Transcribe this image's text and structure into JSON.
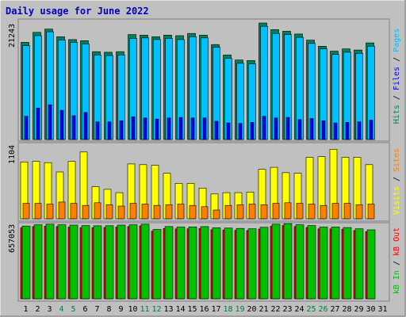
{
  "title": "Daily usage for June 2022",
  "colors": {
    "background": "#c0c0c0",
    "title_text": "#0000c0",
    "hits": "#00805c",
    "files": "#0000ff",
    "pages": "#00c0ff",
    "visits": "#ffff00",
    "sites": "#ff8000",
    "kb_in": "#00c000",
    "kb_out": "#ff0000",
    "weekend_label": "#008040",
    "weekday_label": "#000000"
  },
  "chart_data": [
    {
      "type": "bar",
      "name": "hits_files_pages",
      "max_label": "21243",
      "ylim": [
        0,
        21243
      ],
      "categories": [
        "1",
        "2",
        "3",
        "4",
        "5",
        "6",
        "7",
        "8",
        "9",
        "10",
        "11",
        "12",
        "13",
        "14",
        "15",
        "16",
        "17",
        "18",
        "19",
        "20",
        "21",
        "22",
        "23",
        "24",
        "25",
        "26",
        "27",
        "28",
        "29",
        "30",
        "31"
      ],
      "series": [
        {
          "name": "Hits",
          "values": [
            17600,
            19400,
            20000,
            18600,
            18100,
            17900,
            15900,
            15800,
            15900,
            19000,
            18900,
            18600,
            18900,
            18800,
            19200,
            18900,
            17200,
            15300,
            14400,
            14300,
            21100,
            19900,
            19600,
            19100,
            18000,
            16900,
            16000,
            16400,
            16200,
            17500,
            0
          ]
        },
        {
          "name": "Files",
          "values": [
            4200,
            5700,
            6300,
            5300,
            4300,
            4900,
            3200,
            3200,
            3400,
            4100,
            3900,
            3700,
            3900,
            4000,
            3900,
            3900,
            3300,
            3000,
            2900,
            3100,
            4200,
            3900,
            4000,
            3600,
            3800,
            3400,
            3000,
            3100,
            3200,
            3500,
            0
          ]
        },
        {
          "name": "Pages",
          "values": [
            17000,
            18800,
            19500,
            18000,
            17600,
            17300,
            15300,
            15200,
            15300,
            18300,
            18400,
            18100,
            18300,
            18100,
            18600,
            18400,
            16700,
            14700,
            13800,
            13700,
            20500,
            19200,
            19000,
            18500,
            17400,
            16400,
            15400,
            15800,
            15600,
            16900,
            0
          ]
        }
      ]
    },
    {
      "type": "bar",
      "name": "visits_sites",
      "max_label": "1104",
      "ylim": [
        0,
        1104
      ],
      "categories": [
        "1",
        "2",
        "3",
        "4",
        "5",
        "6",
        "7",
        "8",
        "9",
        "10",
        "11",
        "12",
        "13",
        "14",
        "15",
        "16",
        "17",
        "18",
        "19",
        "20",
        "21",
        "22",
        "23",
        "24",
        "25",
        "26",
        "27",
        "28",
        "29",
        "30",
        "31"
      ],
      "series": [
        {
          "name": "Visits",
          "values": [
            850,
            860,
            840,
            700,
            860,
            1000,
            480,
            440,
            390,
            820,
            810,
            800,
            680,
            530,
            530,
            460,
            370,
            390,
            390,
            400,
            740,
            770,
            690,
            680,
            920,
            930,
            1040,
            920,
            920,
            810,
            0
          ]
        },
        {
          "name": "Sites",
          "values": [
            230,
            230,
            220,
            250,
            230,
            200,
            240,
            210,
            190,
            230,
            220,
            200,
            210,
            220,
            200,
            180,
            130,
            200,
            210,
            220,
            210,
            230,
            240,
            230,
            220,
            200,
            230,
            230,
            210,
            220,
            0
          ]
        }
      ]
    },
    {
      "type": "bar",
      "name": "kb",
      "max_label": "657053",
      "ylim": [
        0,
        657053
      ],
      "categories": [
        "1",
        "2",
        "3",
        "4",
        "5",
        "6",
        "7",
        "8",
        "9",
        "10",
        "11",
        "12",
        "13",
        "14",
        "15",
        "16",
        "17",
        "18",
        "19",
        "20",
        "21",
        "22",
        "23",
        "24",
        "25",
        "26",
        "27",
        "28",
        "29",
        "30",
        "31"
      ],
      "series": [
        {
          "name": "KB In",
          "values": [
            635000,
            646000,
            651000,
            646000,
            643000,
            639000,
            637000,
            638000,
            643000,
            646000,
            651000,
            605000,
            631000,
            626000,
            627000,
            630000,
            620000,
            617000,
            614000,
            611000,
            624000,
            651000,
            656000,
            646000,
            639000,
            626000,
            626000,
            622000,
            611000,
            602000,
            0
          ]
        },
        {
          "name": "KB Out",
          "values": [
            620000,
            630000,
            633000,
            630000,
            625000,
            620000,
            620000,
            622000,
            626000,
            630000,
            636000,
            590000,
            613000,
            610000,
            611000,
            613000,
            603000,
            600000,
            597000,
            595000,
            608000,
            633000,
            640000,
            630000,
            622000,
            610000,
            610000,
            607000,
            595000,
            586000,
            0
          ]
        }
      ]
    }
  ],
  "x_labels": [
    {
      "t": "1",
      "w": false
    },
    {
      "t": "2",
      "w": false
    },
    {
      "t": "3",
      "w": false
    },
    {
      "t": "4",
      "w": true
    },
    {
      "t": "5",
      "w": true
    },
    {
      "t": "6",
      "w": false
    },
    {
      "t": "7",
      "w": false
    },
    {
      "t": "8",
      "w": false
    },
    {
      "t": "9",
      "w": false
    },
    {
      "t": "10",
      "w": false
    },
    {
      "t": "11",
      "w": true
    },
    {
      "t": "12",
      "w": true
    },
    {
      "t": "13",
      "w": false
    },
    {
      "t": "14",
      "w": false
    },
    {
      "t": "15",
      "w": false
    },
    {
      "t": "16",
      "w": false
    },
    {
      "t": "17",
      "w": false
    },
    {
      "t": "18",
      "w": true
    },
    {
      "t": "19",
      "w": true
    },
    {
      "t": "20",
      "w": false
    },
    {
      "t": "21",
      "w": false
    },
    {
      "t": "22",
      "w": false
    },
    {
      "t": "23",
      "w": false
    },
    {
      "t": "24",
      "w": false
    },
    {
      "t": "25",
      "w": true
    },
    {
      "t": "26",
      "w": true
    },
    {
      "t": "27",
      "w": false
    },
    {
      "t": "28",
      "w": false
    },
    {
      "t": "29",
      "w": false
    },
    {
      "t": "30",
      "w": false
    },
    {
      "t": "31",
      "w": false
    }
  ],
  "legends": {
    "top": [
      {
        "text": "Hits",
        "color_key": "hits"
      },
      {
        "text": "/",
        "color_key": "weekday_label"
      },
      {
        "text": "Files",
        "color_key": "files"
      },
      {
        "text": "/",
        "color_key": "weekday_label"
      },
      {
        "text": "Pages",
        "color_key": "pages"
      }
    ],
    "middle": [
      {
        "text": "Visits",
        "color_key": "visits"
      },
      {
        "text": "/",
        "color_key": "weekday_label"
      },
      {
        "text": "Sites",
        "color_key": "sites"
      }
    ],
    "bottom": [
      {
        "text": "kB In",
        "color_key": "kb_in"
      },
      {
        "text": "/",
        "color_key": "weekday_label"
      },
      {
        "text": "kB Out",
        "color_key": "kb_out"
      }
    ]
  }
}
